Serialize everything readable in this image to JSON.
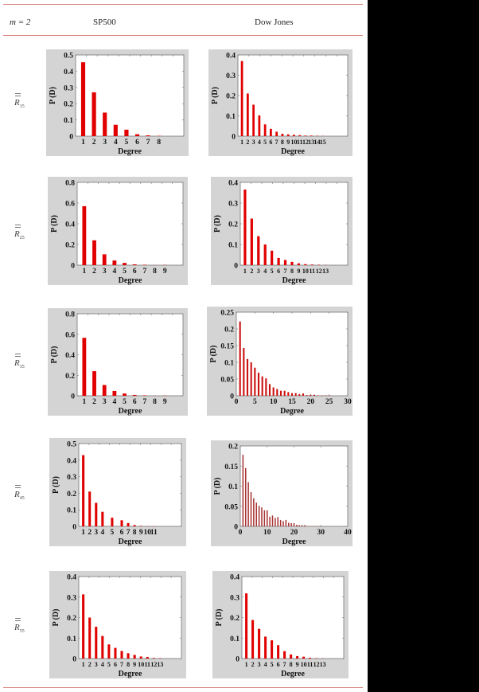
{
  "header": {
    "m_label": "m = 2",
    "col1": "SP500",
    "col2": "Dow Jones"
  },
  "rows": [
    {
      "label": "R",
      "sub": "15"
    },
    {
      "label": "R",
      "sub": "25"
    },
    {
      "label": "R",
      "sub": "35"
    },
    {
      "label": "R",
      "sub": "45"
    },
    {
      "label": "R",
      "sub": "55"
    }
  ],
  "colors": {
    "bar_red": "#e00000",
    "bar_dark": "#a83232",
    "frame": "#d4d4d4",
    "rule": "#d9827d"
  },
  "chart_data": [
    {
      "id": "sp500_15",
      "type": "bar",
      "title": "SP500 R15",
      "xlabel": "Degree",
      "ylabel": "P (D)",
      "ylim": [
        0,
        0.5
      ],
      "yticks": [
        "0",
        "0.1",
        "0.2",
        "0.3",
        "0.4",
        "0.5"
      ],
      "yvals": [
        0,
        0.1,
        0.2,
        0.3,
        0.4,
        0.5
      ],
      "xmode": "cat",
      "xslots": 10,
      "categories": [
        "1",
        "2",
        "3",
        "4",
        "5",
        "6",
        "7",
        "8"
      ],
      "xpos": [
        1,
        2,
        3,
        4,
        5,
        6,
        7,
        8
      ],
      "values": [
        0.455,
        0.27,
        0.145,
        0.07,
        0.04,
        0.012,
        0.005,
        0.002
      ],
      "color": "#e00000"
    },
    {
      "id": "dow_15",
      "type": "bar",
      "title": "Dow Jones R15",
      "xlabel": "Degree",
      "ylabel": "P (D)",
      "ylim": [
        0,
        0.4
      ],
      "yticks": [
        "0",
        "0.1",
        "0.2",
        "0.3",
        "0.4"
      ],
      "yvals": [
        0,
        0.1,
        0.2,
        0.3,
        0.4
      ],
      "xmode": "cat",
      "xslots": 19,
      "categories": [
        "1",
        "2",
        "3",
        "4",
        "5",
        "6",
        "7",
        "8",
        "9",
        "10",
        "11",
        "12",
        "13",
        "14",
        "15"
      ],
      "xpos": [
        1,
        2,
        3,
        4,
        5,
        6,
        7,
        8,
        9,
        10,
        11,
        12,
        13,
        14,
        15
      ],
      "values": [
        0.37,
        0.21,
        0.155,
        0.102,
        0.058,
        0.036,
        0.022,
        0.012,
        0.009,
        0.007,
        0.005,
        0.003,
        0.003,
        0.002,
        0.001
      ],
      "color": "#e00000"
    },
    {
      "id": "sp500_25",
      "type": "bar",
      "title": "SP500 R25",
      "xlabel": "Degree",
      "ylabel": "P (D)",
      "ylim": [
        0,
        0.8
      ],
      "yticks": [
        "0",
        "0.2",
        "0.4",
        "0.6",
        "0.8"
      ],
      "yvals": [
        0,
        0.2,
        0.4,
        0.6,
        0.8
      ],
      "xmode": "cat",
      "xslots": 10.5,
      "categories": [
        "1",
        "2",
        "3",
        "4",
        "5",
        "6",
        "7",
        "8",
        "9"
      ],
      "xpos": [
        1,
        2,
        3,
        4,
        5,
        6,
        7,
        8,
        9
      ],
      "values": [
        0.57,
        0.24,
        0.105,
        0.045,
        0.022,
        0.008,
        0.004,
        0.001,
        0.002
      ],
      "color": "#e00000"
    },
    {
      "id": "dow_25",
      "type": "bar",
      "title": "Dow Jones R25",
      "xlabel": "Degree",
      "ylabel": "P (D)",
      "ylim": [
        0,
        0.4
      ],
      "yticks": [
        "0",
        "0.1",
        "0.2",
        "0.3",
        "0.4"
      ],
      "yvals": [
        0,
        0.1,
        0.2,
        0.3,
        0.4
      ],
      "xmode": "cat",
      "xslots": 16,
      "categories": [
        "1",
        "2",
        "3",
        "4",
        "5",
        "6",
        "7",
        "8",
        "9",
        "10",
        "11",
        "12",
        "13"
      ],
      "xpos": [
        1,
        2,
        3,
        4,
        5,
        6,
        7,
        8,
        9,
        10,
        11,
        12,
        13
      ],
      "values": [
        0.365,
        0.225,
        0.14,
        0.1,
        0.07,
        0.035,
        0.025,
        0.016,
        0.009,
        0.005,
        0.003,
        0.002,
        0.001
      ],
      "color": "#e00000"
    },
    {
      "id": "sp500_35",
      "type": "bar",
      "title": "SP500 R35",
      "xlabel": "Degree",
      "ylabel": "P (D)",
      "ylim": [
        0,
        0.8
      ],
      "yticks": [
        "0",
        "0.2",
        "0.4",
        "0.6",
        "0.8"
      ],
      "yvals": [
        0,
        0.2,
        0.4,
        0.6,
        0.8
      ],
      "xmode": "cat",
      "xslots": 10.5,
      "categories": [
        "1",
        "2",
        "3",
        "4",
        "5",
        "6",
        "7",
        "8",
        "9"
      ],
      "xpos": [
        1,
        2,
        3,
        4,
        5,
        6,
        7,
        8,
        9
      ],
      "values": [
        0.565,
        0.24,
        0.105,
        0.047,
        0.022,
        0.008,
        0.004,
        0.001,
        0.002
      ],
      "color": "#e00000"
    },
    {
      "id": "dow_35",
      "type": "bar",
      "title": "Dow Jones R35",
      "xlabel": "Degree",
      "ylabel": "P (D)",
      "ylim": [
        0,
        0.25
      ],
      "yticks": [
        "0",
        "0.05",
        "0.1",
        "0.15",
        "0.2",
        "0.25"
      ],
      "yvals": [
        0,
        0.05,
        0.1,
        0.15,
        0.2,
        0.25
      ],
      "xmode": "num",
      "xlim": [
        0,
        30
      ],
      "xticks": [
        0,
        5,
        10,
        15,
        20,
        25,
        30
      ],
      "x": [
        1,
        2,
        3,
        4,
        5,
        6,
        7,
        8,
        9,
        10,
        11,
        12,
        13,
        14,
        15,
        16,
        17,
        18,
        19,
        20,
        21,
        22,
        23,
        24,
        25
      ],
      "values": [
        0.222,
        0.143,
        0.11,
        0.1,
        0.084,
        0.069,
        0.058,
        0.052,
        0.035,
        0.025,
        0.02,
        0.015,
        0.015,
        0.011,
        0.008,
        0.008,
        0.005,
        0.007,
        0.002,
        0.003,
        0.003,
        0.001,
        0.001,
        0.001,
        0.001
      ],
      "color": "#cc1010"
    },
    {
      "id": "sp500_45",
      "type": "bar",
      "title": "SP500 R45",
      "xlabel": "Degree",
      "ylabel": "P (D)",
      "ylim": [
        0,
        0.5
      ],
      "yticks": [
        "0",
        "0.1",
        "0.2",
        "0.3",
        "0.4",
        "0.5"
      ],
      "yvals": [
        0,
        0.1,
        0.2,
        0.3,
        0.4,
        0.5
      ],
      "xmode": "cat",
      "xslots": 16,
      "categories": [
        "1",
        "2",
        "3",
        "4",
        "5",
        "6",
        "7",
        "8",
        "9",
        "10",
        "11"
      ],
      "xpos": [
        1,
        2,
        3,
        4,
        5.5,
        7,
        8,
        9,
        10,
        11,
        12
      ],
      "values": [
        0.43,
        0.21,
        0.142,
        0.088,
        0.052,
        0.037,
        0.02,
        0.008,
        0.003,
        0.001,
        0.001
      ],
      "color": "#e00000"
    },
    {
      "id": "dow_45",
      "type": "bar",
      "title": "Dow Jones R45",
      "xlabel": "Degree",
      "ylabel": "P (D)",
      "ylim": [
        0,
        0.2
      ],
      "yticks": [
        "0",
        "0.05",
        "0.1",
        "0.15",
        "0.2"
      ],
      "yvals": [
        0,
        0.05,
        0.1,
        0.15,
        0.2
      ],
      "xmode": "num",
      "xlim": [
        0,
        40
      ],
      "xticks": [
        0,
        10,
        20,
        30,
        40
      ],
      "x": [
        1,
        2,
        3,
        4,
        5,
        6,
        7,
        8,
        9,
        10,
        11,
        12,
        13,
        14,
        15,
        16,
        17,
        18,
        19,
        20,
        21,
        22,
        23,
        24,
        25,
        26,
        27,
        28,
        29,
        30
      ],
      "values": [
        0.178,
        0.145,
        0.11,
        0.085,
        0.07,
        0.059,
        0.051,
        0.047,
        0.04,
        0.04,
        0.024,
        0.027,
        0.021,
        0.023,
        0.016,
        0.013,
        0.016,
        0.009,
        0.008,
        0.008,
        0.004,
        0.003,
        0.003,
        0.003,
        0.001,
        0.001,
        0.001,
        0.001,
        0.001,
        0.001
      ],
      "color": "#a83232"
    },
    {
      "id": "sp500_55",
      "type": "bar",
      "title": "SP500 R55",
      "xlabel": "Degree",
      "ylabel": "P (D)",
      "ylim": [
        0,
        0.4
      ],
      "yticks": [
        "0",
        "0.1",
        "0.2",
        "0.3",
        "0.4"
      ],
      "yvals": [
        0,
        0.1,
        0.2,
        0.3,
        0.4
      ],
      "xmode": "cat",
      "xslots": 16,
      "categories": [
        "1",
        "2",
        "3",
        "4",
        "5",
        "6",
        "7",
        "8",
        "9",
        "10",
        "11",
        "12",
        "13"
      ],
      "xpos": [
        1,
        2,
        3,
        4,
        5,
        6,
        7,
        8,
        9,
        10,
        11,
        12,
        13
      ],
      "values": [
        0.313,
        0.2,
        0.155,
        0.11,
        0.069,
        0.052,
        0.037,
        0.026,
        0.018,
        0.01,
        0.008,
        0.003,
        0.002
      ],
      "color": "#e00000"
    },
    {
      "id": "dow_55",
      "type": "bar",
      "title": "Dow Jones R55",
      "xlabel": "Degree",
      "ylabel": "P (D)",
      "ylim": [
        0,
        0.4
      ],
      "yticks": [
        "0",
        "0.1",
        "0.2",
        "0.3",
        "0.4"
      ],
      "yvals": [
        0,
        0.1,
        0.2,
        0.3,
        0.4
      ],
      "xmode": "cat",
      "xslots": 16,
      "categories": [
        "1",
        "2",
        "3",
        "4",
        "5",
        "6",
        "7",
        "8",
        "9",
        "10",
        "11",
        "12",
        "13"
      ],
      "xpos": [
        1,
        2,
        3,
        4,
        5,
        6,
        7,
        8,
        9,
        10,
        11,
        12,
        13
      ],
      "values": [
        0.318,
        0.188,
        0.145,
        0.107,
        0.089,
        0.065,
        0.036,
        0.02,
        0.012,
        0.009,
        0.004,
        0.002,
        0.001
      ],
      "color": "#e00000"
    }
  ]
}
